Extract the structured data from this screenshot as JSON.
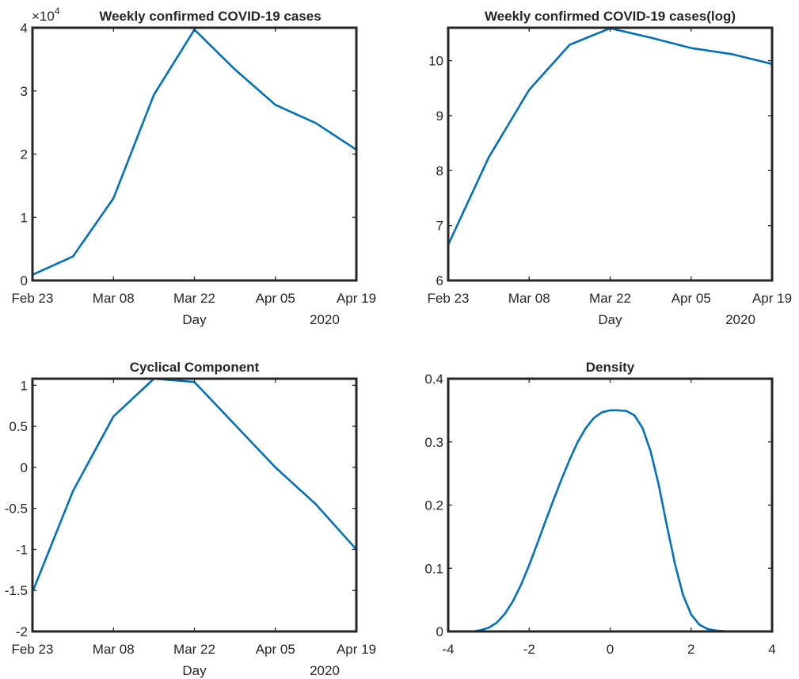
{
  "figure": {
    "line_color": "#0072BD",
    "axis_color": "#262626"
  },
  "chart_data": [
    {
      "type": "line",
      "title": "Weekly confirmed COVID-19 cases",
      "x": [
        "2020-02-23",
        "2020-03-01",
        "2020-03-08",
        "2020-03-15",
        "2020-03-22",
        "2020-03-29",
        "2020-04-05",
        "2020-04-12",
        "2020-04-19"
      ],
      "series": [
        {
          "values": [
            900,
            3800,
            13000,
            29400,
            39700,
            33400,
            27800,
            24900,
            20700
          ]
        }
      ],
      "xlim": [
        "2020-02-23",
        "2020-04-19"
      ],
      "ylim": [
        0,
        40000
      ],
      "x_ticks": [
        "Feb 23",
        "Mar 08",
        "Mar 22",
        "Apr 05",
        "Apr 19"
      ],
      "y_ticks": [
        "0",
        "1",
        "2",
        "3",
        "4"
      ],
      "y_exponent": "×10",
      "y_exponent_power": "4",
      "xlabel": "Day",
      "x_secondary_label": "2020",
      "grid": false
    },
    {
      "type": "line",
      "title": "Weekly confirmed COVID-19 cases(log)",
      "x": [
        "2020-02-23",
        "2020-03-01",
        "2020-03-08",
        "2020-03-15",
        "2020-03-22",
        "2020-03-29",
        "2020-04-05",
        "2020-04-12",
        "2020-04-19"
      ],
      "series": [
        {
          "values": [
            6.65,
            8.24,
            9.47,
            10.29,
            10.59,
            10.42,
            10.23,
            10.12,
            9.94
          ]
        }
      ],
      "xlim": [
        "2020-02-23",
        "2020-04-19"
      ],
      "ylim": [
        6,
        10.6
      ],
      "x_ticks": [
        "Feb 23",
        "Mar 08",
        "Mar 22",
        "Apr 05",
        "Apr 19"
      ],
      "y_ticks": [
        "6",
        "7",
        "8",
        "9",
        "10"
      ],
      "y_tick_values": [
        6,
        7,
        8,
        9,
        10
      ],
      "xlabel": "Day",
      "x_secondary_label": "2020",
      "grid": false
    },
    {
      "type": "line",
      "title": "Cyclical Component",
      "x": [
        "2020-02-23",
        "2020-03-01",
        "2020-03-08",
        "2020-03-15",
        "2020-03-22",
        "2020-03-29",
        "2020-04-05",
        "2020-04-12",
        "2020-04-19"
      ],
      "series": [
        {
          "values": [
            -1.52,
            -0.29,
            0.62,
            1.08,
            1.04,
            0.52,
            0.0,
            -0.45,
            -1.0
          ]
        }
      ],
      "xlim": [
        "2020-02-23",
        "2020-04-19"
      ],
      "ylim": [
        -2,
        1.08
      ],
      "x_ticks": [
        "Feb 23",
        "Mar 08",
        "Mar 22",
        "Apr 05",
        "Apr 19"
      ],
      "y_ticks": [
        "-2",
        "-1.5",
        "-1",
        "-0.5",
        "0",
        "0.5",
        "1"
      ],
      "y_tick_values": [
        -2,
        -1.5,
        -1,
        -0.5,
        0,
        0.5,
        1
      ],
      "xlabel": "Day",
      "x_secondary_label": "2020",
      "grid": false
    },
    {
      "type": "line",
      "title": "Density",
      "x": [
        -3.4,
        -3.2,
        -3.0,
        -2.8,
        -2.6,
        -2.4,
        -2.2,
        -2.0,
        -1.8,
        -1.6,
        -1.4,
        -1.2,
        -1.0,
        -0.8,
        -0.6,
        -0.4,
        -0.2,
        0.0,
        0.2,
        0.4,
        0.6,
        0.8,
        1.0,
        1.2,
        1.4,
        1.6,
        1.8,
        2.0,
        2.2,
        2.4,
        2.6,
        2.8,
        3.0
      ],
      "series": [
        {
          "values": [
            0.0,
            0.002,
            0.006,
            0.014,
            0.028,
            0.048,
            0.074,
            0.105,
            0.139,
            0.174,
            0.208,
            0.241,
            0.272,
            0.3,
            0.322,
            0.338,
            0.347,
            0.35,
            0.35,
            0.349,
            0.342,
            0.322,
            0.285,
            0.232,
            0.168,
            0.107,
            0.058,
            0.027,
            0.011,
            0.004,
            0.0015,
            0.0005,
            0.0
          ]
        }
      ],
      "xlim": [
        -4,
        4
      ],
      "ylim": [
        0,
        0.4
      ],
      "x_ticks": [
        "-4",
        "-2",
        "0",
        "2",
        "4"
      ],
      "x_tick_values": [
        -4,
        -2,
        0,
        2,
        4
      ],
      "y_ticks": [
        "0",
        "0.1",
        "0.2",
        "0.3",
        "0.4"
      ],
      "y_tick_values": [
        0,
        0.1,
        0.2,
        0.3,
        0.4
      ],
      "grid": false
    }
  ]
}
